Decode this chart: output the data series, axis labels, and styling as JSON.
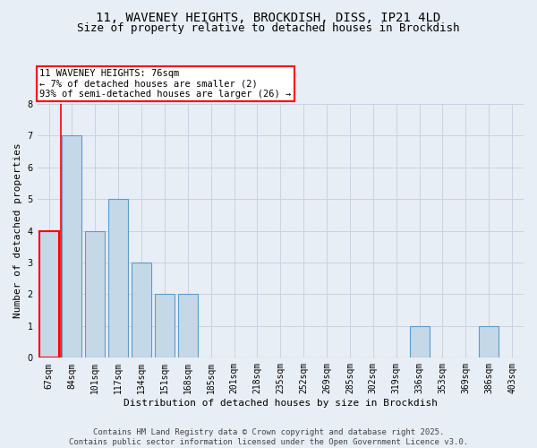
{
  "title_line1": "11, WAVENEY HEIGHTS, BROCKDISH, DISS, IP21 4LD",
  "title_line2": "Size of property relative to detached houses in Brockdish",
  "xlabel": "Distribution of detached houses by size in Brockdish",
  "ylabel": "Number of detached properties",
  "categories": [
    "67sqm",
    "84sqm",
    "101sqm",
    "117sqm",
    "134sqm",
    "151sqm",
    "168sqm",
    "185sqm",
    "201sqm",
    "218sqm",
    "235sqm",
    "252sqm",
    "269sqm",
    "285sqm",
    "302sqm",
    "319sqm",
    "336sqm",
    "353sqm",
    "369sqm",
    "386sqm",
    "403sqm"
  ],
  "values": [
    4,
    7,
    4,
    5,
    3,
    2,
    2,
    0,
    0,
    0,
    0,
    0,
    0,
    0,
    0,
    0,
    1,
    0,
    0,
    1,
    0
  ],
  "bar_color": "#c5d8e8",
  "bar_edge_color": "#5b9dc9",
  "highlight_bar_index": 0,
  "highlight_edge_color": "red",
  "annotation_box_text": "11 WAVENEY HEIGHTS: 76sqm\n← 7% of detached houses are smaller (2)\n93% of semi-detached houses are larger (26) →",
  "annotation_box_color": "white",
  "annotation_box_edge_color": "red",
  "red_vline_x": 0.5,
  "ylim": [
    0,
    8
  ],
  "yticks": [
    0,
    1,
    2,
    3,
    4,
    5,
    6,
    7,
    8
  ],
  "grid_color": "#c8d4e3",
  "background_color": "#e8eef5",
  "footer_text": "Contains HM Land Registry data © Crown copyright and database right 2025.\nContains public sector information licensed under the Open Government Licence v3.0.",
  "title_fontsize": 10,
  "subtitle_fontsize": 9,
  "annotation_fontsize": 7.5,
  "axis_label_fontsize": 8,
  "tick_fontsize": 7,
  "footer_fontsize": 6.5
}
